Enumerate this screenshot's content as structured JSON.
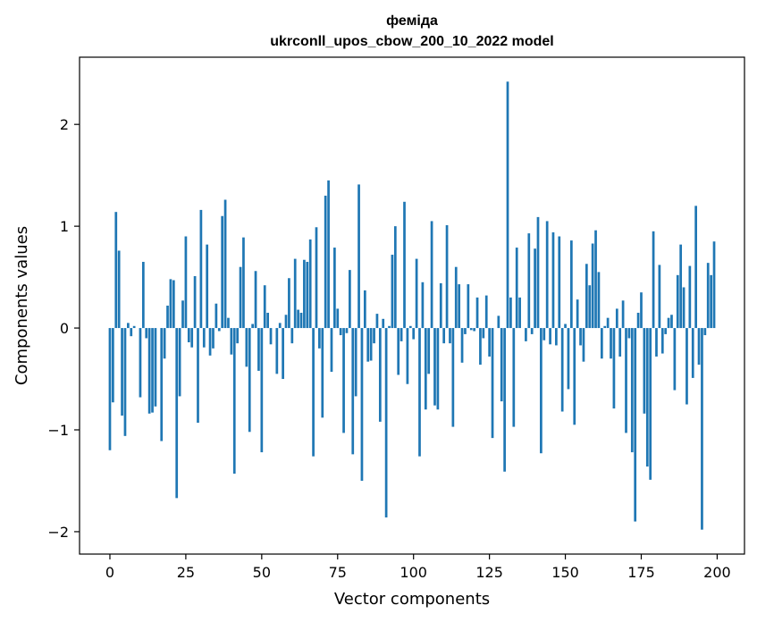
{
  "chart_data": {
    "type": "bar",
    "title_lines": [
      "феміда",
      "ukrconll_upos_cbow_200_10_2022 model"
    ],
    "xlabel": "Vector components",
    "ylabel": "Components values",
    "xlim": [
      -10,
      209
    ],
    "ylim": [
      -2.22,
      2.66
    ],
    "xticks": [
      0,
      25,
      50,
      75,
      100,
      125,
      150,
      175,
      200
    ],
    "xtick_labels": [
      "0",
      "25",
      "50",
      "75",
      "100",
      "125",
      "150",
      "175",
      "200"
    ],
    "yticks": [
      -2,
      -1,
      0,
      1,
      2
    ],
    "ytick_labels": [
      "−2",
      "−1",
      "0",
      "1",
      "2"
    ],
    "grid": false,
    "bar_color": "#1f77b4",
    "x": [
      0,
      1,
      2,
      3,
      4,
      5,
      6,
      7,
      8,
      9,
      10,
      11,
      12,
      13,
      14,
      15,
      16,
      17,
      18,
      19,
      20,
      21,
      22,
      23,
      24,
      25,
      26,
      27,
      28,
      29,
      30,
      31,
      32,
      33,
      34,
      35,
      36,
      37,
      38,
      39,
      40,
      41,
      42,
      43,
      44,
      45,
      46,
      47,
      48,
      49,
      50,
      51,
      52,
      53,
      54,
      55,
      56,
      57,
      58,
      59,
      60,
      61,
      62,
      63,
      64,
      65,
      66,
      67,
      68,
      69,
      70,
      71,
      72,
      73,
      74,
      75,
      76,
      77,
      78,
      79,
      80,
      81,
      82,
      83,
      84,
      85,
      86,
      87,
      88,
      89,
      90,
      91,
      92,
      93,
      94,
      95,
      96,
      97,
      98,
      99,
      100,
      101,
      102,
      103,
      104,
      105,
      106,
      107,
      108,
      109,
      110,
      111,
      112,
      113,
      114,
      115,
      116,
      117,
      118,
      119,
      120,
      121,
      122,
      123,
      124,
      125,
      126,
      127,
      128,
      129,
      130,
      131,
      132,
      133,
      134,
      135,
      136,
      137,
      138,
      139,
      140,
      141,
      142,
      143,
      144,
      145,
      146,
      147,
      148,
      149,
      150,
      151,
      152,
      153,
      154,
      155,
      156,
      157,
      158,
      159,
      160,
      161,
      162,
      163,
      164,
      165,
      166,
      167,
      168,
      169,
      170,
      171,
      172,
      173,
      174,
      175,
      176,
      177,
      178,
      179,
      180,
      181,
      182,
      183,
      184,
      185,
      186,
      187,
      188,
      189,
      190,
      191,
      192,
      193,
      194,
      195,
      196,
      197,
      198,
      199
    ],
    "values": [
      -1.2,
      -0.73,
      1.14,
      0.76,
      -0.86,
      -1.06,
      0.05,
      -0.08,
      0.02,
      0,
      -0.68,
      0.65,
      -0.1,
      -0.84,
      -0.83,
      -0.77,
      0,
      -1.11,
      -0.3,
      0.22,
      0.48,
      0.47,
      -1.67,
      -0.67,
      0.27,
      0.9,
      -0.14,
      -0.19,
      0.51,
      -0.93,
      1.16,
      -0.19,
      0.82,
      -0.27,
      -0.2,
      0.24,
      -0.03,
      1.1,
      1.26,
      0.1,
      -0.26,
      -1.43,
      -0.15,
      0.6,
      0.89,
      -0.38,
      -1.02,
      0.04,
      0.56,
      -0.42,
      -1.22,
      0.42,
      0.15,
      -0.16,
      0,
      -0.45,
      0.05,
      -0.5,
      0.13,
      0.49,
      -0.15,
      0.68,
      0.18,
      0.15,
      0.67,
      0.65,
      0.87,
      -1.26,
      0.99,
      -0.2,
      -0.88,
      1.3,
      1.45,
      -0.43,
      0.79,
      0.19,
      -0.07,
      -1.03,
      -0.05,
      0.57,
      -1.24,
      -0.67,
      1.41,
      -1.5,
      0.37,
      -0.33,
      -0.32,
      -0.15,
      0.14,
      -0.92,
      0.09,
      -1.86,
      0.02,
      0.72,
      1,
      -0.46,
      -0.13,
      1.24,
      -0.55,
      0.02,
      -0.11,
      0.68,
      -1.26,
      0.45,
      -0.8,
      -0.45,
      1.05,
      -0.76,
      -0.8,
      0.44,
      -0.15,
      1.01,
      -0.15,
      -0.97,
      0.6,
      0.43,
      -0.34,
      -0.06,
      0.43,
      -0.02,
      -0.03,
      0.3,
      -0.36,
      -0.1,
      0.32,
      -0.28,
      -1.08,
      0,
      0.12,
      -0.72,
      -1.41,
      2.42,
      0.3,
      -0.97,
      0.79,
      0.3,
      0,
      -0.13,
      0.93,
      -0.06,
      0.78,
      1.09,
      -1.23,
      -0.12,
      1.05,
      -0.16,
      0.94,
      -0.17,
      0.9,
      -0.82,
      0.04,
      -0.6,
      0.86,
      -0.95,
      0.28,
      -0.17,
      -0.33,
      0.63,
      0.42,
      0.83,
      0.96,
      0.55,
      -0.3,
      0.02,
      0.1,
      -0.3,
      -0.79,
      0.19,
      -0.28,
      0.27,
      -1.03,
      -0.1,
      -1.22,
      -1.9,
      0.15,
      0.35,
      -0.84,
      -1.36,
      -1.49,
      0.95,
      -0.28,
      0.62,
      -0.25,
      -0.06,
      0.1,
      0.13,
      -0.61,
      0.52,
      0.82,
      0.4,
      -0.75,
      0.61,
      -0.49,
      1.2,
      -0.36,
      -1.98,
      -0.07,
      0.64,
      0.52,
      0.85
    ]
  }
}
